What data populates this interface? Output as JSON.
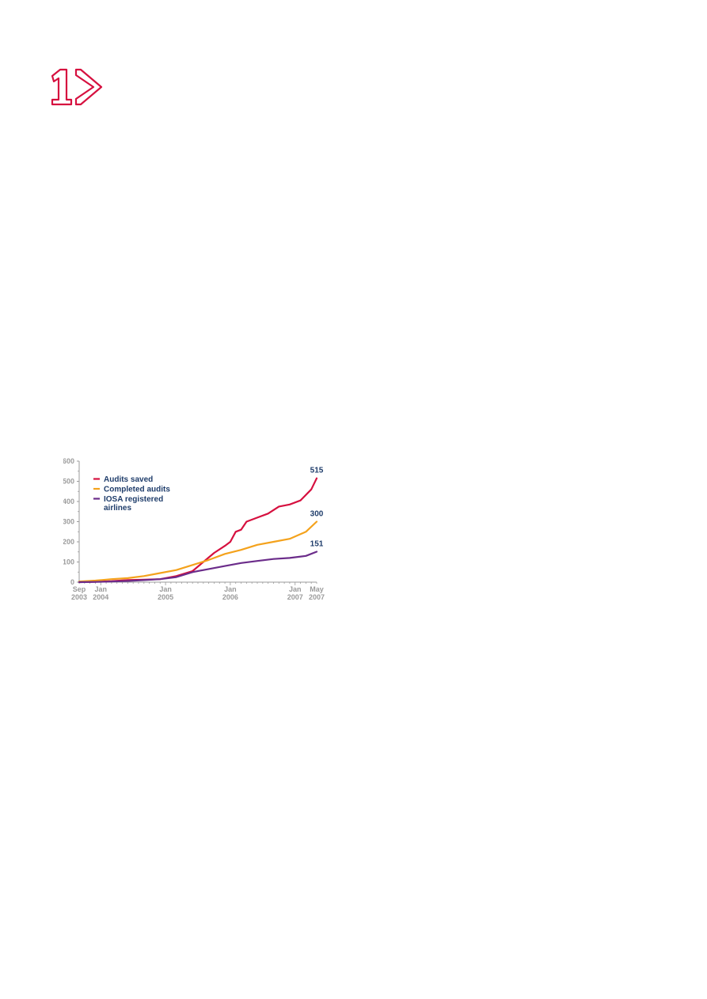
{
  "section_mark": {
    "number": "1",
    "icon": "chevron-right-icon",
    "color": "#d6103f"
  },
  "chart_data": {
    "type": "line",
    "title": "",
    "xlabel": "",
    "ylabel": "",
    "ylim": [
      0,
      600
    ],
    "yticks": [
      0,
      100,
      200,
      300,
      400,
      500,
      600
    ],
    "yticks_text": [
      "0",
      "100",
      "200",
      "300",
      "400",
      "500",
      "600"
    ],
    "xlim": [
      "2003-09",
      "2007-05"
    ],
    "xticks": [
      {
        "date": "2003-09",
        "line1": "Sep",
        "line2": "2003"
      },
      {
        "date": "2004-01",
        "line1": "Jan",
        "line2": "2004"
      },
      {
        "date": "2005-01",
        "line1": "Jan",
        "line2": "2005"
      },
      {
        "date": "2006-01",
        "line1": "Jan",
        "line2": "2006"
      },
      {
        "date": "2007-01",
        "line1": "Jan",
        "line2": "2007"
      },
      {
        "date": "2007-05",
        "line1": "May",
        "line2": "2007"
      }
    ],
    "grid": false,
    "legend": "top-left",
    "series": [
      {
        "name": "Audits saved",
        "color": "#d6103f",
        "end_label": "515",
        "x": [
          "2003-09",
          "2003-12",
          "2004-03",
          "2004-06",
          "2004-09",
          "2004-12",
          "2005-03",
          "2005-06",
          "2005-08",
          "2005-10",
          "2005-12",
          "2006-01",
          "2006-02",
          "2006-03",
          "2006-04",
          "2006-06",
          "2006-08",
          "2006-10",
          "2006-12",
          "2007-02",
          "2007-04",
          "2007-05"
        ],
        "y": [
          0,
          2,
          5,
          10,
          12,
          15,
          30,
          55,
          100,
          145,
          180,
          200,
          250,
          260,
          300,
          320,
          340,
          375,
          385,
          405,
          460,
          515
        ]
      },
      {
        "name": "Completed audits",
        "color": "#f4a21c",
        "end_label": "300",
        "x": [
          "2003-09",
          "2003-12",
          "2004-03",
          "2004-06",
          "2004-09",
          "2004-12",
          "2005-03",
          "2005-06",
          "2005-09",
          "2005-12",
          "2006-03",
          "2006-06",
          "2006-09",
          "2006-12",
          "2007-03",
          "2007-05"
        ],
        "y": [
          3,
          8,
          15,
          20,
          30,
          45,
          60,
          85,
          110,
          140,
          160,
          185,
          200,
          215,
          250,
          300
        ]
      },
      {
        "name": "IOSA registered airlines",
        "color": "#6b2c8a",
        "end_label": "151",
        "x": [
          "2003-09",
          "2003-12",
          "2004-03",
          "2004-06",
          "2004-09",
          "2004-12",
          "2005-03",
          "2005-06",
          "2005-09",
          "2005-12",
          "2006-03",
          "2006-06",
          "2006-09",
          "2006-12",
          "2007-03",
          "2007-05"
        ],
        "y": [
          0,
          1,
          3,
          6,
          10,
          15,
          25,
          50,
          65,
          80,
          95,
          105,
          115,
          120,
          130,
          151
        ]
      }
    ],
    "legend_lines": [
      [
        "Audits saved"
      ],
      [
        "Completed audits"
      ],
      [
        "IOSA registered",
        "airlines"
      ]
    ]
  }
}
